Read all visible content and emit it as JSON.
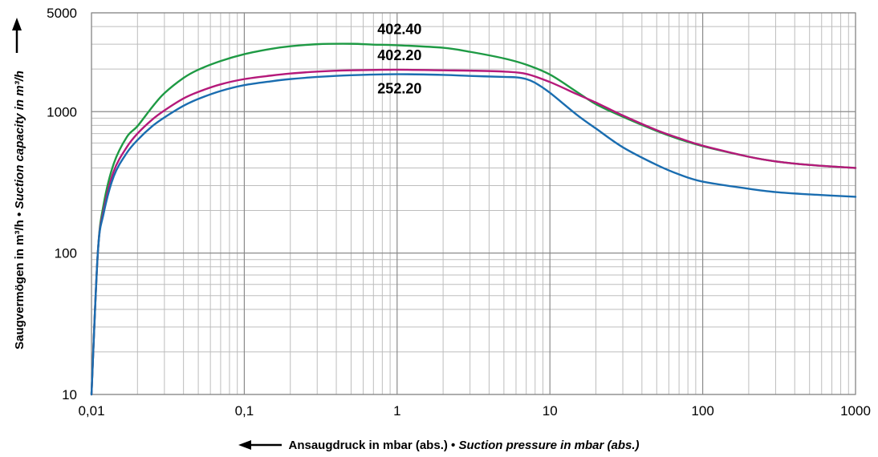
{
  "chart_data": {
    "type": "line",
    "title": "",
    "xlabel_main": "Ansaugdruck in mbar (abs.)",
    "xlabel_sep": " • ",
    "xlabel_en": "Suction pressure in mbar (abs.)",
    "ylabel_main": "Saugvermögen in m³/h",
    "ylabel_sep": " • ",
    "ylabel_en": "Suction capacity in m³/h",
    "x_scale": "log",
    "y_scale": "log",
    "xlim": [
      0.01,
      1000
    ],
    "ylim": [
      10,
      5000
    ],
    "x_ticks": [
      0.01,
      0.1,
      1,
      10,
      100,
      1000
    ],
    "x_tick_labels": [
      "0,01",
      "0,1",
      "1",
      "10",
      "100",
      "1000"
    ],
    "y_ticks": [
      10,
      100,
      1000,
      5000
    ],
    "y_tick_labels": [
      "10",
      "100",
      "1000",
      "5000"
    ],
    "grid": true,
    "series": [
      {
        "name": "402.40",
        "color": "#1e9a44",
        "x": [
          0.01,
          0.011,
          0.012,
          0.014,
          0.017,
          0.02,
          0.025,
          0.03,
          0.04,
          0.05,
          0.07,
          0.1,
          0.15,
          0.2,
          0.3,
          0.5,
          0.7,
          1,
          2,
          3,
          5,
          7,
          10,
          15,
          20,
          30,
          50,
          70,
          100,
          200,
          300,
          500,
          1000
        ],
        "y": [
          10,
          100,
          220,
          430,
          660,
          790,
          1080,
          1350,
          1730,
          1980,
          2280,
          2550,
          2780,
          2900,
          3000,
          3020,
          2980,
          2950,
          2830,
          2650,
          2380,
          2150,
          1830,
          1380,
          1130,
          920,
          730,
          640,
          570,
          480,
          445,
          420,
          400
        ]
      },
      {
        "name": "402.20",
        "color": "#b5197a",
        "x": [
          0.01,
          0.011,
          0.012,
          0.014,
          0.017,
          0.02,
          0.025,
          0.03,
          0.04,
          0.05,
          0.07,
          0.1,
          0.15,
          0.2,
          0.3,
          0.5,
          1,
          2,
          3,
          5,
          7,
          10,
          15,
          20,
          30,
          50,
          70,
          100,
          200,
          300,
          500,
          1000
        ],
        "y": [
          10,
          100,
          200,
          380,
          560,
          700,
          880,
          1020,
          1240,
          1380,
          1560,
          1700,
          1800,
          1860,
          1920,
          1960,
          1980,
          1960,
          1950,
          1920,
          1850,
          1620,
          1330,
          1160,
          940,
          740,
          650,
          575,
          480,
          445,
          420,
          400
        ]
      },
      {
        "name": "252.20",
        "color": "#1a6db0",
        "x": [
          0.01,
          0.011,
          0.012,
          0.014,
          0.017,
          0.02,
          0.025,
          0.03,
          0.04,
          0.05,
          0.07,
          0.1,
          0.15,
          0.2,
          0.3,
          0.5,
          1,
          2,
          3,
          5,
          6,
          7,
          8,
          10,
          15,
          20,
          30,
          50,
          70,
          100,
          200,
          300,
          500,
          1000
        ],
        "y": [
          10,
          100,
          190,
          350,
          510,
          630,
          790,
          910,
          1100,
          1230,
          1400,
          1540,
          1640,
          1700,
          1760,
          1810,
          1840,
          1820,
          1790,
          1760,
          1750,
          1700,
          1600,
          1360,
          950,
          760,
          560,
          420,
          360,
          320,
          285,
          270,
          260,
          250
        ]
      }
    ]
  }
}
